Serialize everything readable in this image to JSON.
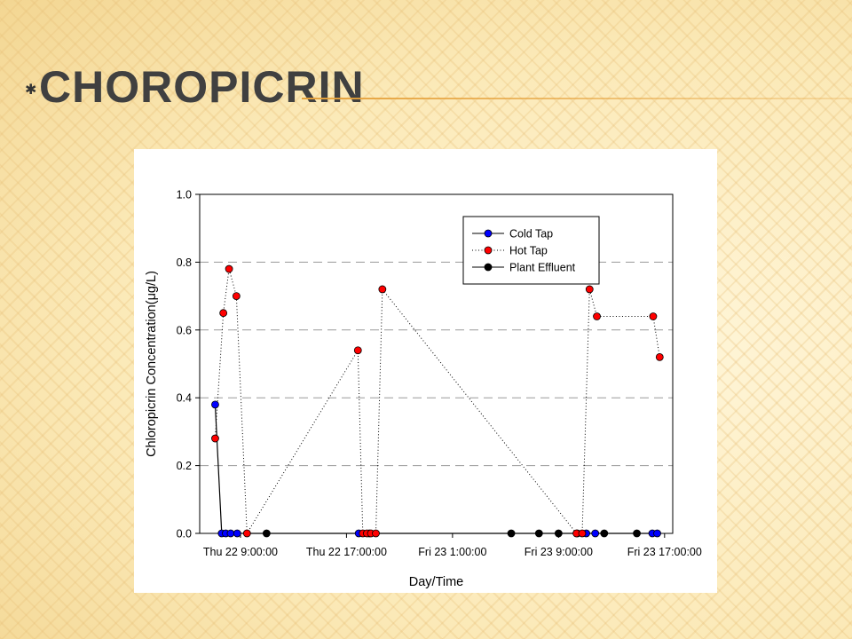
{
  "slide": {
    "title": "Choropicrin"
  },
  "chart_data": {
    "type": "line",
    "title": "",
    "xlabel": "Day/Time",
    "ylabel": "Chloropicrin Concentration(μg/L)",
    "xlim": [
      5.5,
      34.5
    ],
    "ylim": [
      0.0,
      1.0
    ],
    "x_ticks": [
      {
        "value": 8,
        "label": "Thu 22 9:00:00"
      },
      {
        "value": 14.5,
        "label": "Thu 22 17:00:00"
      },
      {
        "value": 21,
        "label": "Fri 23 1:00:00"
      },
      {
        "value": 27.5,
        "label": "Fri 23 9:00:00"
      },
      {
        "value": 34,
        "label": "Fri 23 17:00:00"
      }
    ],
    "y_ticks": [
      0.0,
      0.2,
      0.4,
      0.6,
      0.8,
      1.0
    ],
    "y_tick_labels": [
      "0.0",
      "0.2",
      "0.4",
      "0.6",
      "0.8",
      "1.0"
    ],
    "grid": "horizontal dashed",
    "legend_position": "top-right",
    "series": [
      {
        "name": "Cold Tap",
        "color": "#0000ff",
        "line": "solid",
        "x": [
          6.45,
          6.85,
          7.1,
          7.4,
          7.8,
          15.25,
          15.9,
          28.65,
          29.2,
          29.75,
          33.25,
          33.55
        ],
        "y": [
          0.38,
          0.0,
          0.0,
          0.0,
          0.0,
          0.0,
          0.0,
          0.0,
          0.0,
          0.0,
          0.0,
          0.0
        ]
      },
      {
        "name": "Hot Tap",
        "color": "#ff0000",
        "line": "dotted",
        "x": [
          6.45,
          6.95,
          7.3,
          7.75,
          8.4,
          15.2,
          15.5,
          15.75,
          16.0,
          16.3,
          16.7,
          28.6,
          28.95,
          29.4,
          29.85,
          33.3,
          33.7
        ],
        "y": [
          0.28,
          0.65,
          0.78,
          0.7,
          0.0,
          0.54,
          0.0,
          0.0,
          0.0,
          0.0,
          0.72,
          0.0,
          0.0,
          0.72,
          0.64,
          0.64,
          0.52
        ]
      },
      {
        "name": "Plant Effluent",
        "color": "#000000",
        "line": "none",
        "x": [
          9.6,
          24.6,
          26.3,
          27.5,
          30.3,
          32.3
        ],
        "y": [
          0.0,
          0.0,
          0.0,
          0.0,
          0.0,
          0.0
        ]
      }
    ]
  }
}
